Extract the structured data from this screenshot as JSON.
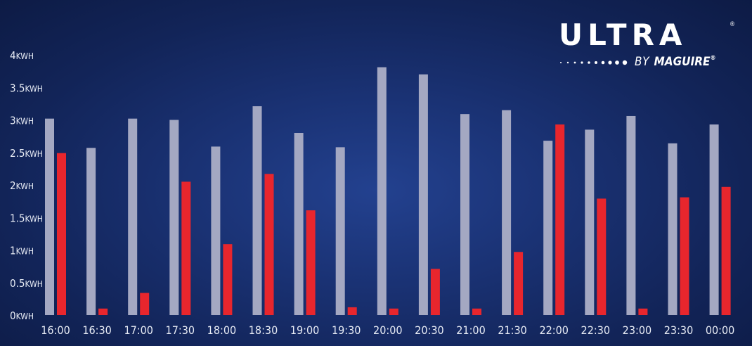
{
  "chart_data": {
    "type": "bar",
    "y_unit": "KWH",
    "yticks": [
      "0",
      "0.5",
      "1",
      "1.5",
      "2",
      "2.5",
      "3",
      "3.5",
      "4"
    ],
    "ylim": [
      0,
      4
    ],
    "categories": [
      "16:00",
      "16:30",
      "17:00",
      "17:30",
      "18:00",
      "18:30",
      "19:00",
      "19:30",
      "20:00",
      "20:30",
      "21:00",
      "21:30",
      "22:00",
      "22:30",
      "23:00",
      "23:30",
      "00:00"
    ],
    "series": [
      {
        "color": "#a4a8c2",
        "values": [
          3.02,
          2.57,
          3.02,
          3.0,
          2.59,
          3.21,
          2.8,
          2.58,
          3.81,
          3.7,
          3.09,
          3.15,
          2.68,
          2.85,
          3.06,
          2.64,
          2.93
        ]
      },
      {
        "color": "#e8262d",
        "values": [
          2.49,
          0.1,
          0.34,
          2.05,
          1.09,
          2.17,
          1.61,
          0.12,
          0.1,
          0.71,
          0.1,
          0.97,
          2.93,
          1.79,
          0.1,
          1.81,
          1.97
        ]
      }
    ],
    "grid": false,
    "legend": "none"
  },
  "logo": {
    "main": "ULTRA",
    "registered": "®",
    "by": "BY",
    "brand": "MAGUIRE",
    "brand_registered": "®",
    "icon": "dotted-line-icon"
  }
}
